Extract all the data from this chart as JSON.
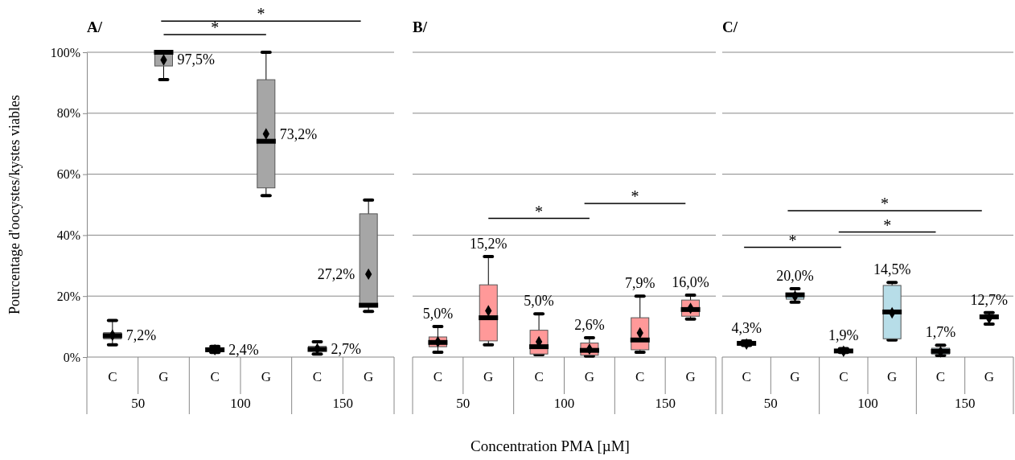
{
  "chart_data": [
    {
      "type": "box",
      "title": "A/",
      "ylabel": "Pourcentage d'oocystes/kystes viables",
      "xlabel": "Concentration PMA [µM]",
      "categories": [
        "C",
        "G",
        "C",
        "G",
        "C",
        "G"
      ],
      "boxes": [
        {
          "low": 4,
          "q1": 6,
          "median": 7,
          "q3": 8,
          "high": 12,
          "mean": 7.2
        },
        {
          "low": 91,
          "q1": 95.5,
          "median": 100,
          "q3": 100,
          "high": 100,
          "mean": 97.5
        },
        {
          "low": 1.5,
          "q1": 1.8,
          "median": 2.4,
          "q3": 3,
          "high": 3.5,
          "mean": 2.4
        },
        {
          "low": 53,
          "q1": 55.5,
          "median": 70.8,
          "q3": 91,
          "high": 100,
          "mean": 73.2
        },
        {
          "low": 1,
          "q1": 2,
          "median": 2.5,
          "q3": 3.5,
          "high": 5,
          "mean": 2.7
        },
        {
          "low": 15,
          "q1": 17,
          "median": 17,
          "q3": 47,
          "high": 51.5,
          "mean": 27.2
        }
      ],
      "value_labels": [
        "7,2%",
        "97,5%",
        "2,4%",
        "73,2%",
        "2,7%",
        "27,2%"
      ],
      "colors": [
        "#a6a6a6",
        "#a6a6a6",
        "#a6a6a6",
        "#a6a6a6",
        "#a6a6a6",
        "#a6a6a6"
      ],
      "ylim": [
        0,
        100
      ],
      "yticks": [
        {
          "value": 0,
          "label": "0%"
        },
        {
          "value": 20,
          "label": "20%"
        },
        {
          "value": 40,
          "label": "40%"
        },
        {
          "value": 60,
          "label": "60%"
        },
        {
          "value": 80,
          "label": "80%"
        },
        {
          "value": 100,
          "label": "100%"
        }
      ],
      "grid": "y",
      "annotations": [
        "50",
        "100",
        "150",
        "*",
        "*"
      ]
    },
    {
      "type": "box",
      "title": "B/",
      "categories": [
        "C",
        "G",
        "C",
        "G",
        "C",
        "G"
      ],
      "boxes": [
        {
          "low": 1.6,
          "q1": 3.4,
          "median": 4.8,
          "q3": 6.6,
          "high": 10,
          "mean": 5.0
        },
        {
          "low": 4,
          "q1": 5.3,
          "median": 12.9,
          "q3": 23.7,
          "high": 33,
          "mean": 15.2
        },
        {
          "low": 0.8,
          "q1": 1,
          "median": 3.4,
          "q3": 8.8,
          "high": 14.2,
          "mean": 5.0
        },
        {
          "low": 0.3,
          "q1": 0.6,
          "median": 2.2,
          "q3": 4.6,
          "high": 6.3,
          "mean": 2.6
        },
        {
          "low": 1.6,
          "q1": 2.4,
          "median": 5.6,
          "q3": 12.9,
          "high": 20,
          "mean": 7.9
        },
        {
          "low": 12.5,
          "q1": 13.4,
          "median": 15.6,
          "q3": 18.7,
          "high": 20.3,
          "mean": 16.0
        }
      ],
      "value_labels": [
        "5,0%",
        "15,2%",
        "5,0%",
        "2,6%",
        "7,9%",
        "16,0%"
      ],
      "colors": [
        "#ff9999",
        "#ff9999",
        "#ff9999",
        "#ff9999",
        "#ff9999",
        "#ff9999"
      ],
      "ylim": [
        0,
        100
      ],
      "yticks": [
        0,
        20,
        40,
        60,
        80,
        100
      ],
      "grid": "y",
      "tick_labels": "x",
      "annotations": [
        "50",
        "100",
        "150",
        "*",
        "*"
      ]
    },
    {
      "type": "box",
      "title": "C/",
      "categories": [
        "C",
        "G",
        "C",
        "G",
        "C",
        "G"
      ],
      "boxes": [
        {
          "low": 3.8,
          "q1": 4,
          "median": 4.5,
          "q3": 5,
          "high": 5.3,
          "mean": 4.3
        },
        {
          "low": 18,
          "q1": 19,
          "median": 20.4,
          "q3": 21,
          "high": 22.4,
          "mean": 20.0
        },
        {
          "low": 1.5,
          "q1": 1.8,
          "median": 2,
          "q3": 2.5,
          "high": 2.8,
          "mean": 1.9
        },
        {
          "low": 5.6,
          "q1": 6,
          "median": 14.8,
          "q3": 23.5,
          "high": 24.5,
          "mean": 14.5
        },
        {
          "low": 0.5,
          "q1": 1,
          "median": 1.9,
          "q3": 2.9,
          "high": 3.9,
          "mean": 1.7
        },
        {
          "low": 10.8,
          "q1": 12.5,
          "median": 13.2,
          "q3": 13.8,
          "high": 14.6,
          "mean": 12.7
        }
      ],
      "value_labels": [
        "4,3%",
        "20,0%",
        "1,9%",
        "14,5%",
        "1,7%",
        "12,7%"
      ],
      "colors": [
        "#b7dde8",
        "#b7dde8",
        "#b7dde8",
        "#b7dde8",
        "#b7dde8",
        "#b7dde8"
      ],
      "ylim": [
        0,
        100
      ],
      "yticks": [
        0,
        20,
        40,
        60,
        80,
        100
      ],
      "grid": "y",
      "tick_labels": "x",
      "annotations": [
        "50",
        "100",
        "150",
        "*",
        "*",
        "*"
      ]
    }
  ]
}
